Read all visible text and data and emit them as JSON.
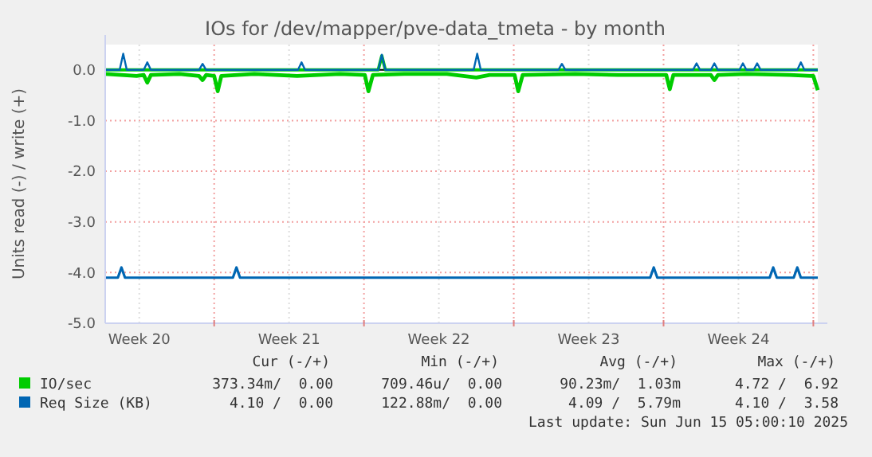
{
  "chart_data": {
    "type": "line",
    "title": "IOs for /dev/mapper/pve-data_tmeta - by month",
    "ylabel": "Units read (-) / write (+)",
    "xlim": [
      "2025-05-12T21:48",
      "2025-06-15T05:00"
    ],
    "ylim": [
      -5,
      0.5
    ],
    "xticks": [
      {
        "value": "2025-05-14T12:00",
        "label": "Week 20"
      },
      {
        "value": "2025-05-18",
        "label": null
      },
      {
        "value": "2025-05-21T12:00",
        "label": "Week 21"
      },
      {
        "value": "2025-05-25",
        "label": null
      },
      {
        "value": "2025-05-28T12:00",
        "label": "Week 22"
      },
      {
        "value": "2025-06-01",
        "label": null
      },
      {
        "value": "2025-06-04T12:00",
        "label": "Week 23"
      },
      {
        "value": "2025-06-08",
        "label": null
      },
      {
        "value": "2025-06-11T12:00",
        "label": "Week 24"
      },
      {
        "value": "2025-06-15",
        "label": null
      }
    ],
    "yticks": [
      {
        "value": -5,
        "label": "-5.0"
      },
      {
        "value": -4,
        "label": "-4.0"
      },
      {
        "value": -3,
        "label": "-3.0"
      },
      {
        "value": -2,
        "label": "-2.0"
      },
      {
        "value": -1,
        "label": "-1.0"
      },
      {
        "value": 0,
        "label": "0.0"
      }
    ],
    "grid": true,
    "legend": "bottom",
    "line_style": "solid",
    "marker": "none",
    "series": [
      {
        "name": "IO/sec",
        "color": "#00cc00",
        "x": [
          "2025-05-12T22:00",
          "2025-05-14T09:00",
          "2025-05-14T17:00",
          "2025-05-14T21:00",
          "2025-05-15T01:00",
          "2025-05-16T09:00",
          "2025-05-17T07:00",
          "2025-05-17T11:00",
          "2025-05-17T15:00",
          "2025-05-18T00:00",
          "2025-05-18T04:00",
          "2025-05-18T08:00",
          "2025-05-19T21:00",
          "2025-05-21T21:00",
          "2025-05-23T21:00",
          "2025-05-25T01:00",
          "2025-05-25T05:00",
          "2025-05-25T10:00",
          "2025-05-26T21:00",
          "2025-05-28T21:00",
          "2025-05-30T06:00",
          "2025-05-30T21:00",
          "2025-06-01T01:00",
          "2025-06-01T05:00",
          "2025-06-01T10:00",
          "2025-06-03T21:00",
          "2025-06-05T21:00",
          "2025-06-08T03:00",
          "2025-06-08T07:00",
          "2025-06-08T11:00",
          "2025-06-10T05:00",
          "2025-06-10T09:00",
          "2025-06-10T13:00",
          "2025-06-11T21:00",
          "2025-06-13T21:00",
          "2025-06-15T00:00",
          "2025-06-15T05:00"
        ],
        "values": [
          -0.08,
          -0.12,
          -0.1,
          -0.25,
          -0.1,
          -0.08,
          -0.12,
          -0.2,
          -0.1,
          -0.12,
          -0.42,
          -0.12,
          -0.08,
          -0.12,
          -0.08,
          -0.1,
          -0.42,
          -0.1,
          -0.08,
          -0.08,
          -0.15,
          -0.1,
          -0.1,
          -0.42,
          -0.1,
          -0.08,
          -0.1,
          -0.1,
          -0.38,
          -0.1,
          -0.1,
          -0.2,
          -0.1,
          -0.08,
          -0.1,
          -0.12,
          -0.4
        ]
      },
      {
        "color": "#00cc00",
        "x": [
          "2025-05-12T22:00",
          "2025-05-25T16:00",
          "2025-05-25T20:00",
          "2025-05-26T00:00",
          "2025-06-15T05:00"
        ],
        "values": [
          0,
          0,
          0.28,
          0,
          0
        ]
      },
      {
        "name": "Req Size (KB)",
        "color": "#0066b3",
        "x": [
          "2025-05-12T22:00",
          "2025-05-13T12:00",
          "2025-05-13T16:00",
          "2025-05-13T20:00",
          "2025-05-18T21:00",
          "2025-05-19T01:00",
          "2025-05-19T05:00",
          "2025-06-07T09:00",
          "2025-06-07T13:00",
          "2025-06-07T17:00",
          "2025-06-12T23:00",
          "2025-06-13T03:00",
          "2025-06-13T07:00",
          "2025-06-14T02:00",
          "2025-06-14T06:00",
          "2025-06-14T10:00",
          "2025-06-15T05:00"
        ],
        "values": [
          -4.1,
          -4.1,
          -3.9,
          -4.1,
          -4.1,
          -3.9,
          -4.1,
          -4.1,
          -3.9,
          -4.1,
          -4.1,
          -3.9,
          -4.1,
          -4.1,
          -3.9,
          -4.1,
          -4.1
        ]
      },
      {
        "color": "#0066b3",
        "x": [
          "2025-05-12T22:00",
          "2025-05-13T14:00",
          "2025-05-13T18:00",
          "2025-05-13T22:00",
          "2025-05-14T17:00",
          "2025-05-14T21:00",
          "2025-05-15T01:00",
          "2025-05-17T07:00",
          "2025-05-17T11:00",
          "2025-05-17T15:00",
          "2025-05-21T22:00",
          "2025-05-22T02:00",
          "2025-05-22T06:00",
          "2025-05-25T16:00",
          "2025-05-25T20:00",
          "2025-05-26T00:00",
          "2025-05-30T03:00",
          "2025-05-30T07:00",
          "2025-05-30T11:00",
          "2025-06-03T02:00",
          "2025-06-03T06:00",
          "2025-06-03T10:00",
          "2025-06-09T09:00",
          "2025-06-09T13:00",
          "2025-06-09T17:00",
          "2025-06-10T05:00",
          "2025-06-10T09:00",
          "2025-06-10T13:00",
          "2025-06-11T13:00",
          "2025-06-11T17:00",
          "2025-06-11T21:00",
          "2025-06-12T05:00",
          "2025-06-12T09:00",
          "2025-06-12T13:00",
          "2025-06-14T06:00",
          "2025-06-14T10:00",
          "2025-06-14T14:00",
          "2025-06-15T05:00"
        ],
        "values": [
          0,
          0,
          0.32,
          0,
          0,
          0.15,
          0,
          0,
          0.12,
          0,
          0,
          0.15,
          0,
          0,
          0.3,
          0,
          0,
          0.32,
          0,
          0,
          0.12,
          0,
          0,
          0.13,
          0,
          0,
          0.13,
          0,
          0,
          0.13,
          0,
          0,
          0.13,
          0,
          0,
          0.15,
          0,
          0
        ]
      }
    ],
    "annotations": [
      "Cur (-/+)",
      "Min (-/+)",
      "Avg (-/+)",
      "Max (-/+)",
      "373.34m/  0.00",
      "709.46u/  0.00",
      "90.23m/  1.03m",
      "4.72 /  6.92",
      "4.10 /  0.00",
      "122.88m/  0.00",
      "4.09 /  5.79m",
      "4.10 /  3.58",
      "Last update: Sun Jun 15 05:00:10 2025"
    ]
  }
}
